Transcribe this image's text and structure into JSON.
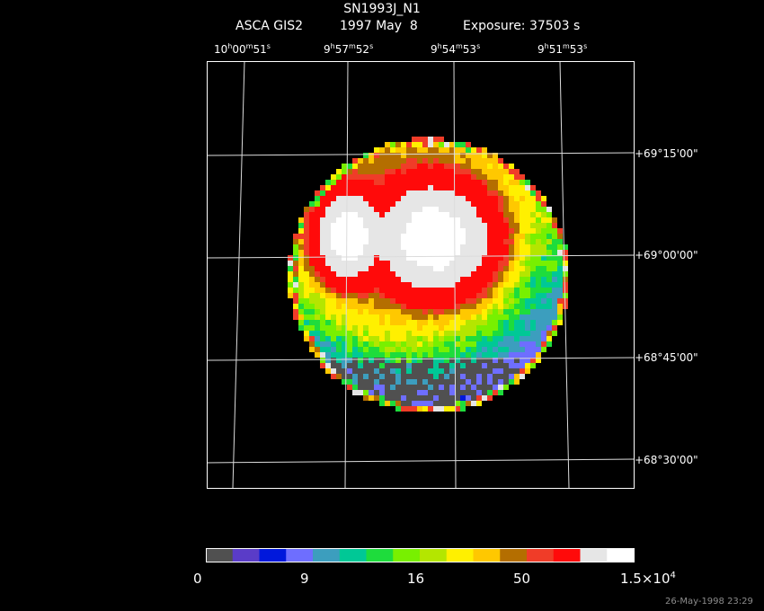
{
  "header": {
    "title": "SN1993J_N1",
    "subtitle_instrument": "ASCA GIS2",
    "subtitle_date": "1997 May  8",
    "subtitle_exposure": "Exposure: 37503 s"
  },
  "axes": {
    "ra_ticks": [
      {
        "h": "10",
        "m": "00",
        "s": "51"
      },
      {
        "h": "9",
        "m": "57",
        "s": "52"
      },
      {
        "h": "9",
        "m": "54",
        "s": "53"
      },
      {
        "h": "9",
        "m": "51",
        "s": "53"
      }
    ],
    "dec_ticks": [
      "+69°15'00\"",
      "+69°00'00\"",
      "+68°45'00\"",
      "+68°30'00\""
    ]
  },
  "colorbar": {
    "labels": [
      "0",
      "9",
      "16",
      "50"
    ],
    "max_mantissa": "1.5×10",
    "max_exponent": "4",
    "colors": [
      "#505050",
      "#5a3cc8",
      "#0018dc",
      "#6e6eff",
      "#3c9ebe",
      "#00c896",
      "#1edc3c",
      "#78f000",
      "#b4e600",
      "#fff000",
      "#ffc800",
      "#b46e00",
      "#f03c28",
      "#ff0a0a",
      "#e6e6e6",
      "#ffffff"
    ]
  },
  "timestamp": "26-May-1998 23:29",
  "chart_data": {
    "type": "heatmap",
    "title": "SN1993J_N1",
    "subtitle": "ASCA GIS2    1997 May  8    Exposure: 37503 s",
    "x_axis": {
      "ticks": [
        "10h00m51s",
        "9h57m52s",
        "9h54m53s",
        "9h51m53s"
      ],
      "grid": true
    },
    "y_axis": {
      "ticks": [
        "+69°15'00\"",
        "+69°00'00\"",
        "+68°45'00\"",
        "+68°30'00\""
      ],
      "grid": true
    },
    "colorbar": {
      "tick_labels": [
        "0",
        "9",
        "16",
        "50",
        "1.5×10^4"
      ],
      "scale": "nonlinear",
      "position": "bottom"
    },
    "features": [
      {
        "type": "bright-source",
        "ra": "9h55m20s",
        "dec": "+69°02'",
        "peak_level": 15
      },
      {
        "type": "bright-source",
        "ra": "9h58m40s",
        "dec": "+69°02'",
        "peak_level": 15
      }
    ]
  }
}
